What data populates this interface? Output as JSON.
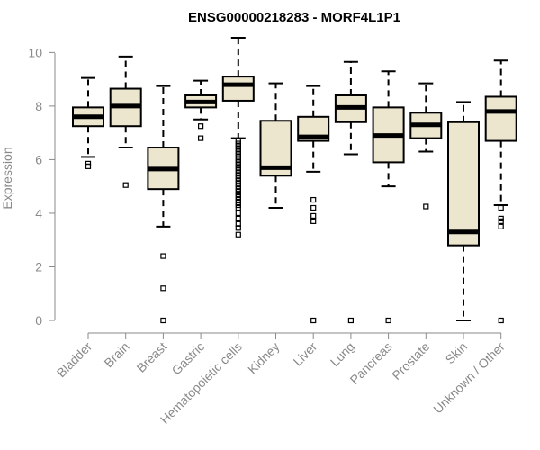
{
  "chart_data": {
    "type": "boxplot",
    "title": "ENSG00000218283 - MORF4L1P1",
    "xlabel": "",
    "ylabel": "Expression",
    "ylim": [
      0,
      10.55
    ],
    "yticks": [
      0,
      2,
      4,
      6,
      8,
      10
    ],
    "box_fill": "#ede6cf",
    "box_stroke": "#000000",
    "categories": [
      "Bladder",
      "Brain",
      "Breast",
      "Gastric",
      "Hematopoietic cells",
      "Kidney",
      "Liver",
      "Lung",
      "Pancreas",
      "Prostate",
      "Skin",
      "Unknown / Other"
    ],
    "boxes": [
      {
        "category": "Bladder",
        "whisker_low": 6.1,
        "q1": 7.25,
        "median": 7.6,
        "q3": 7.95,
        "whisker_high": 9.05,
        "outliers": [
          5.75,
          5.85
        ]
      },
      {
        "category": "Brain",
        "whisker_low": 6.45,
        "q1": 7.25,
        "median": 8.0,
        "q3": 8.65,
        "whisker_high": 9.85,
        "outliers": [
          5.05
        ]
      },
      {
        "category": "Breast",
        "whisker_low": 3.5,
        "q1": 4.9,
        "median": 5.65,
        "q3": 6.45,
        "whisker_high": 8.75,
        "outliers": [
          2.4,
          1.2,
          0.0
        ]
      },
      {
        "category": "Gastric",
        "whisker_low": 7.5,
        "q1": 7.95,
        "median": 8.15,
        "q3": 8.4,
        "whisker_high": 8.95,
        "outliers": [
          7.25,
          6.8
        ]
      },
      {
        "category": "Hematopoietic cells",
        "whisker_low": 6.8,
        "q1": 8.2,
        "median": 8.8,
        "q3": 9.1,
        "whisker_high": 10.55,
        "outliers": [
          6.7,
          6.6,
          6.5,
          6.4,
          6.3,
          6.2,
          6.1,
          6.0,
          5.9,
          5.8,
          5.7,
          5.6,
          5.5,
          5.4,
          5.3,
          5.2,
          5.1,
          5.0,
          4.9,
          4.8,
          4.7,
          4.6,
          4.5,
          4.4,
          4.3,
          4.2,
          4.0,
          3.8,
          3.6,
          3.45,
          3.2
        ]
      },
      {
        "category": "Kidney",
        "whisker_low": 4.2,
        "q1": 5.4,
        "median": 5.7,
        "q3": 7.45,
        "whisker_high": 8.85,
        "outliers": []
      },
      {
        "category": "Liver",
        "whisker_low": 5.55,
        "q1": 6.7,
        "median": 6.85,
        "q3": 7.6,
        "whisker_high": 8.75,
        "outliers": [
          4.5,
          4.2,
          3.9,
          3.7,
          0.0
        ]
      },
      {
        "category": "Lung",
        "whisker_low": 6.2,
        "q1": 7.4,
        "median": 7.95,
        "q3": 8.4,
        "whisker_high": 9.65,
        "outliers": [
          0.0
        ]
      },
      {
        "category": "Pancreas",
        "whisker_low": 5.0,
        "q1": 5.9,
        "median": 6.9,
        "q3": 7.95,
        "whisker_high": 9.3,
        "outliers": [
          0.0
        ]
      },
      {
        "category": "Prostate",
        "whisker_low": 6.3,
        "q1": 6.8,
        "median": 7.3,
        "q3": 7.75,
        "whisker_high": 8.85,
        "outliers": [
          4.25
        ]
      },
      {
        "category": "Skin",
        "whisker_low": 0.0,
        "q1": 2.8,
        "median": 3.3,
        "q3": 7.4,
        "whisker_high": 8.15,
        "outliers": []
      },
      {
        "category": "Unknown / Other",
        "whisker_low": 4.3,
        "q1": 6.7,
        "median": 7.8,
        "q3": 8.35,
        "whisker_high": 9.7,
        "outliers": [
          4.2,
          3.8,
          3.7,
          3.5,
          0.0
        ]
      }
    ]
  }
}
